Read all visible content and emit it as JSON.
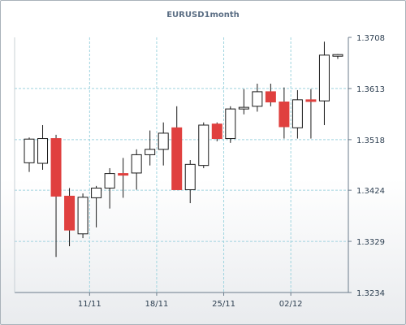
{
  "chart_data": {
    "type": "candlestick",
    "title": "EURUSD1month",
    "xlabel": "",
    "ylabel": "",
    "ylim": [
      1.3234,
      1.3708
    ],
    "y_ticks": [
      "1.3708",
      "1.3613",
      "1.3518",
      "1.3424",
      "1.3329",
      "1.3234"
    ],
    "y_tick_values": [
      1.3708,
      1.3613,
      1.3518,
      1.3424,
      1.3329,
      1.3234
    ],
    "x_ticks": [
      "11/11",
      "18/11",
      "25/11",
      "02/12"
    ],
    "x_tick_index": [
      4.5,
      9.5,
      14.5,
      19.5
    ],
    "grid": true,
    "colors": {
      "up_fill": "#ffffff",
      "down_fill": "#e0403f",
      "candle_stroke": "#1a1a1a",
      "grid": "#9fd4df",
      "axis": "#6b7b8b"
    },
    "candles": [
      {
        "open": 1.3475,
        "high": 1.3522,
        "low": 1.3458,
        "close": 1.3519
      },
      {
        "open": 1.3474,
        "high": 1.3545,
        "low": 1.3462,
        "close": 1.352
      },
      {
        "open": 1.352,
        "high": 1.3527,
        "low": 1.33,
        "close": 1.3413
      },
      {
        "open": 1.3413,
        "high": 1.3428,
        "low": 1.332,
        "close": 1.335
      },
      {
        "open": 1.3343,
        "high": 1.3418,
        "low": 1.3335,
        "close": 1.3411
      },
      {
        "open": 1.341,
        "high": 1.3432,
        "low": 1.3355,
        "close": 1.3428
      },
      {
        "open": 1.3428,
        "high": 1.3465,
        "low": 1.339,
        "close": 1.3455
      },
      {
        "open": 1.3455,
        "high": 1.3484,
        "low": 1.341,
        "close": 1.3453
      },
      {
        "open": 1.3456,
        "high": 1.35,
        "low": 1.3425,
        "close": 1.349
      },
      {
        "open": 1.349,
        "high": 1.3535,
        "low": 1.347,
        "close": 1.35
      },
      {
        "open": 1.35,
        "high": 1.355,
        "low": 1.347,
        "close": 1.353
      },
      {
        "open": 1.354,
        "high": 1.358,
        "low": 1.3425,
        "close": 1.3425
      },
      {
        "open": 1.3425,
        "high": 1.348,
        "low": 1.34,
        "close": 1.3472
      },
      {
        "open": 1.347,
        "high": 1.355,
        "low": 1.3465,
        "close": 1.3545
      },
      {
        "open": 1.3547,
        "high": 1.355,
        "low": 1.3515,
        "close": 1.352
      },
      {
        "open": 1.352,
        "high": 1.358,
        "low": 1.3512,
        "close": 1.3575
      },
      {
        "open": 1.3575,
        "high": 1.3612,
        "low": 1.3565,
        "close": 1.3578
      },
      {
        "open": 1.358,
        "high": 1.3622,
        "low": 1.357,
        "close": 1.3607
      },
      {
        "open": 1.3607,
        "high": 1.3622,
        "low": 1.358,
        "close": 1.3588
      },
      {
        "open": 1.3588,
        "high": 1.3615,
        "low": 1.352,
        "close": 1.3542
      },
      {
        "open": 1.354,
        "high": 1.361,
        "low": 1.352,
        "close": 1.3592
      },
      {
        "open": 1.3592,
        "high": 1.3612,
        "low": 1.352,
        "close": 1.359
      },
      {
        "open": 1.359,
        "high": 1.37,
        "low": 1.3545,
        "close": 1.3675
      },
      {
        "open": 1.3673,
        "high": 1.3677,
        "low": 1.3668,
        "close": 1.3676
      }
    ]
  }
}
